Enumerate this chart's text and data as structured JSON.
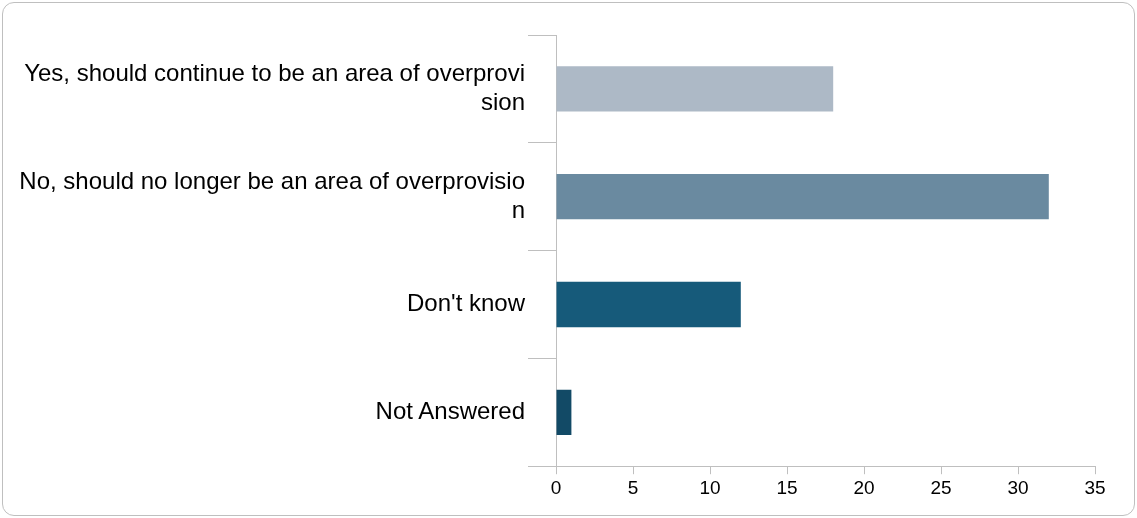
{
  "chart_data": {
    "type": "bar",
    "orientation": "horizontal",
    "categories": [
      "Yes, should continue to be an area of overprovision",
      "No, should no longer be an area of overprovision",
      "Don't know",
      "Not Answered"
    ],
    "values": [
      18,
      32,
      12,
      1
    ],
    "colors": [
      "#adb9c6",
      "#6a8aa0",
      "#165a7a",
      "#124a66"
    ],
    "xlim": [
      0,
      35
    ],
    "xticks": [
      0,
      5,
      10,
      15,
      20,
      25,
      30,
      35
    ],
    "grid": false,
    "legend": false
  }
}
